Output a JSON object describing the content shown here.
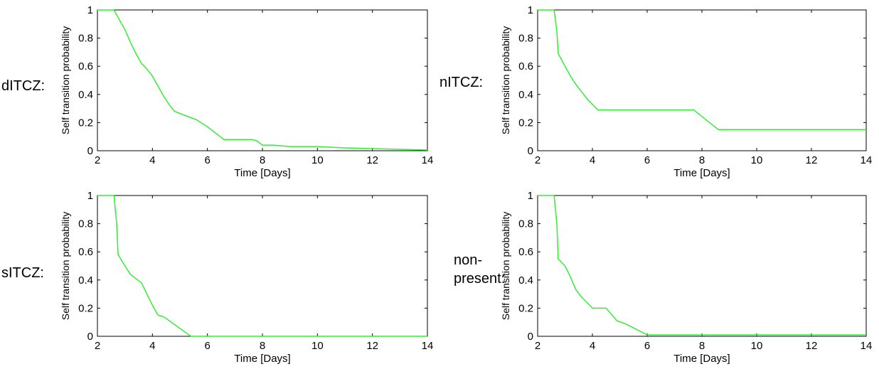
{
  "colors": {
    "series": "#33ee33",
    "axis": "#000000",
    "background": "#ffffff"
  },
  "chart_data": [
    {
      "type": "line",
      "panel_label": [
        "dITCZ:"
      ],
      "xlabel": "Time [Days]",
      "ylabel": "Self transition probability",
      "xlim": [
        2,
        14
      ],
      "ylim": [
        0,
        1
      ],
      "xticks": [
        2,
        4,
        6,
        8,
        10,
        12,
        14
      ],
      "yticks": [
        0,
        0.2,
        0.4,
        0.6,
        0.8,
        1
      ],
      "ytick_labels": [
        "0",
        "0.2",
        "0.4",
        "0.6",
        "0.8",
        "1"
      ],
      "grid": false,
      "series": [
        {
          "x": [
            2,
            2.6,
            2.8,
            3.0,
            3.2,
            3.4,
            3.6,
            3.8,
            4.0,
            4.2,
            4.4,
            4.6,
            4.8,
            5.2,
            5.6,
            6.0,
            6.4,
            6.6,
            7.0,
            7.6,
            7.8,
            8.0,
            8.4,
            9.0,
            10.0,
            11.0,
            12.0,
            13.0,
            14.0
          ],
          "y": [
            1,
            1,
            0.93,
            0.86,
            0.77,
            0.69,
            0.62,
            0.58,
            0.53,
            0.46,
            0.39,
            0.33,
            0.28,
            0.25,
            0.22,
            0.17,
            0.11,
            0.08,
            0.08,
            0.08,
            0.07,
            0.04,
            0.04,
            0.03,
            0.03,
            0.02,
            0.015,
            0.01,
            0.005
          ]
        }
      ]
    },
    {
      "type": "line",
      "panel_label": [
        "nITCZ:"
      ],
      "xlabel": "Time [Days]",
      "ylabel": "Self transition probability",
      "xlim": [
        2,
        14
      ],
      "ylim": [
        0,
        1
      ],
      "xticks": [
        2,
        4,
        6,
        8,
        10,
        12,
        14
      ],
      "yticks": [
        0,
        0.2,
        0.4,
        0.6,
        0.8,
        1
      ],
      "ytick_labels": [
        "0",
        "0.2",
        "0.4",
        "0.6",
        "0.8",
        "1"
      ],
      "grid": false,
      "series": [
        {
          "x": [
            2,
            2.6,
            2.7,
            2.75,
            3.0,
            3.2,
            3.4,
            3.6,
            3.8,
            4.0,
            4.2,
            7.7,
            8.6,
            14.0
          ],
          "y": [
            1,
            1,
            0.85,
            0.69,
            0.6,
            0.53,
            0.47,
            0.42,
            0.37,
            0.33,
            0.29,
            0.29,
            0.15,
            0.15
          ]
        }
      ]
    },
    {
      "type": "line",
      "panel_label": [
        "sITCZ:"
      ],
      "xlabel": "Time [Days]",
      "ylabel": "Self transition probability",
      "xlim": [
        2,
        14
      ],
      "ylim": [
        0,
        1
      ],
      "xticks": [
        2,
        4,
        6,
        8,
        10,
        12,
        14
      ],
      "yticks": [
        0,
        0.2,
        0.4,
        0.6,
        0.8,
        1
      ],
      "ytick_labels": [
        "0",
        "0.2",
        "0.4",
        "0.6",
        "0.8",
        "1"
      ],
      "grid": false,
      "series": [
        {
          "x": [
            2,
            2.6,
            2.7,
            2.75,
            3.0,
            3.2,
            3.4,
            3.6,
            3.8,
            4.0,
            4.2,
            4.4,
            5.4,
            14.0
          ],
          "y": [
            1,
            1,
            0.8,
            0.58,
            0.5,
            0.44,
            0.41,
            0.38,
            0.3,
            0.22,
            0.15,
            0.14,
            0.0,
            0.0
          ]
        }
      ]
    },
    {
      "type": "line",
      "panel_label": [
        "non-",
        "present:"
      ],
      "xlabel": "Time [Days]",
      "ylabel": "Self transition probability",
      "xlim": [
        2,
        14
      ],
      "ylim": [
        0,
        1
      ],
      "xticks": [
        2,
        4,
        6,
        8,
        10,
        12,
        14
      ],
      "yticks": [
        0,
        0.2,
        0.4,
        0.6,
        0.8,
        1
      ],
      "ytick_labels": [
        "0",
        "0.2",
        "0.4",
        "0.6",
        "0.8",
        "1"
      ],
      "grid": false,
      "series": [
        {
          "x": [
            2,
            2.6,
            2.7,
            2.75,
            3.0,
            3.2,
            3.4,
            3.6,
            3.8,
            4.0,
            4.5,
            4.9,
            5.2,
            6.0,
            14.0
          ],
          "y": [
            1,
            1,
            0.8,
            0.55,
            0.5,
            0.42,
            0.33,
            0.28,
            0.24,
            0.2,
            0.2,
            0.11,
            0.09,
            0.01,
            0.01
          ]
        }
      ]
    }
  ]
}
